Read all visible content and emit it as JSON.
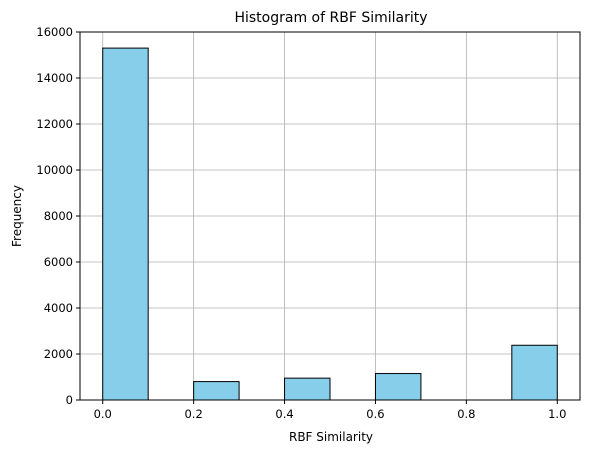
{
  "chart_data": {
    "type": "bar",
    "title": "Histogram of RBF Similarity",
    "xlabel": "RBF Similarity",
    "ylabel": "Frequency",
    "xlim": [
      -0.05,
      1.05
    ],
    "ylim": [
      0,
      16000
    ],
    "xticks": [
      0.0,
      0.2,
      0.4,
      0.6,
      0.8,
      1.0
    ],
    "xtick_labels": [
      "0.0",
      "0.2",
      "0.4",
      "0.6",
      "0.8",
      "1.0"
    ],
    "yticks": [
      0,
      2000,
      4000,
      6000,
      8000,
      10000,
      12000,
      14000,
      16000
    ],
    "ytick_labels": [
      "0",
      "2000",
      "4000",
      "6000",
      "8000",
      "10000",
      "12000",
      "14000",
      "16000"
    ],
    "grid": true,
    "bar_color": "#87ceeb",
    "edge_color": "#000000",
    "bins": [
      {
        "x0": 0.0,
        "x1": 0.1,
        "value": 15300
      },
      {
        "x0": 0.1,
        "x1": 0.2,
        "value": 0
      },
      {
        "x0": 0.2,
        "x1": 0.3,
        "value": 800
      },
      {
        "x0": 0.3,
        "x1": 0.4,
        "value": 0
      },
      {
        "x0": 0.4,
        "x1": 0.5,
        "value": 950
      },
      {
        "x0": 0.5,
        "x1": 0.6,
        "value": 0
      },
      {
        "x0": 0.6,
        "x1": 0.7,
        "value": 1150
      },
      {
        "x0": 0.7,
        "x1": 0.8,
        "value": 0
      },
      {
        "x0": 0.8,
        "x1": 0.9,
        "value": 0
      },
      {
        "x0": 0.9,
        "x1": 1.0,
        "value": 2380
      }
    ]
  }
}
